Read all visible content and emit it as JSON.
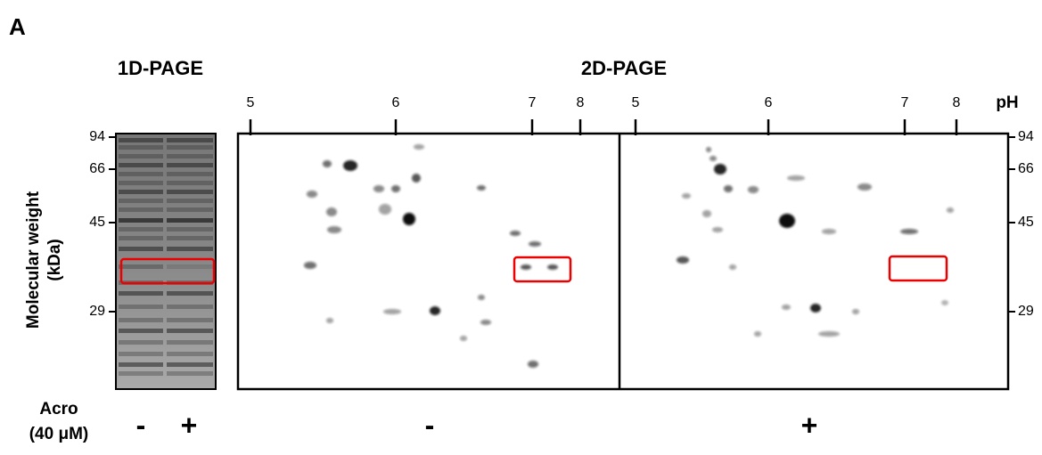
{
  "panel_label": "A",
  "gel_1d": {
    "title": "1D-PAGE",
    "mw_ticks": [
      "94",
      "66",
      "45",
      "29"
    ],
    "lanes": [
      "-",
      "+"
    ]
  },
  "gel_2d": {
    "title": "2D-PAGE",
    "ph_label": "pH",
    "ph_ticks_left": [
      "5",
      "6",
      "7",
      "8"
    ],
    "ph_ticks_right": [
      "5",
      "6",
      "7",
      "8"
    ],
    "mw_ticks": [
      "94",
      "66",
      "45",
      "29"
    ],
    "conditions": [
      "-",
      "+"
    ]
  },
  "y_axis_label": [
    "Molecular weight",
    "(kDa)"
  ],
  "treatment": {
    "label": "Acro",
    "concentration": "(40 μM)"
  }
}
